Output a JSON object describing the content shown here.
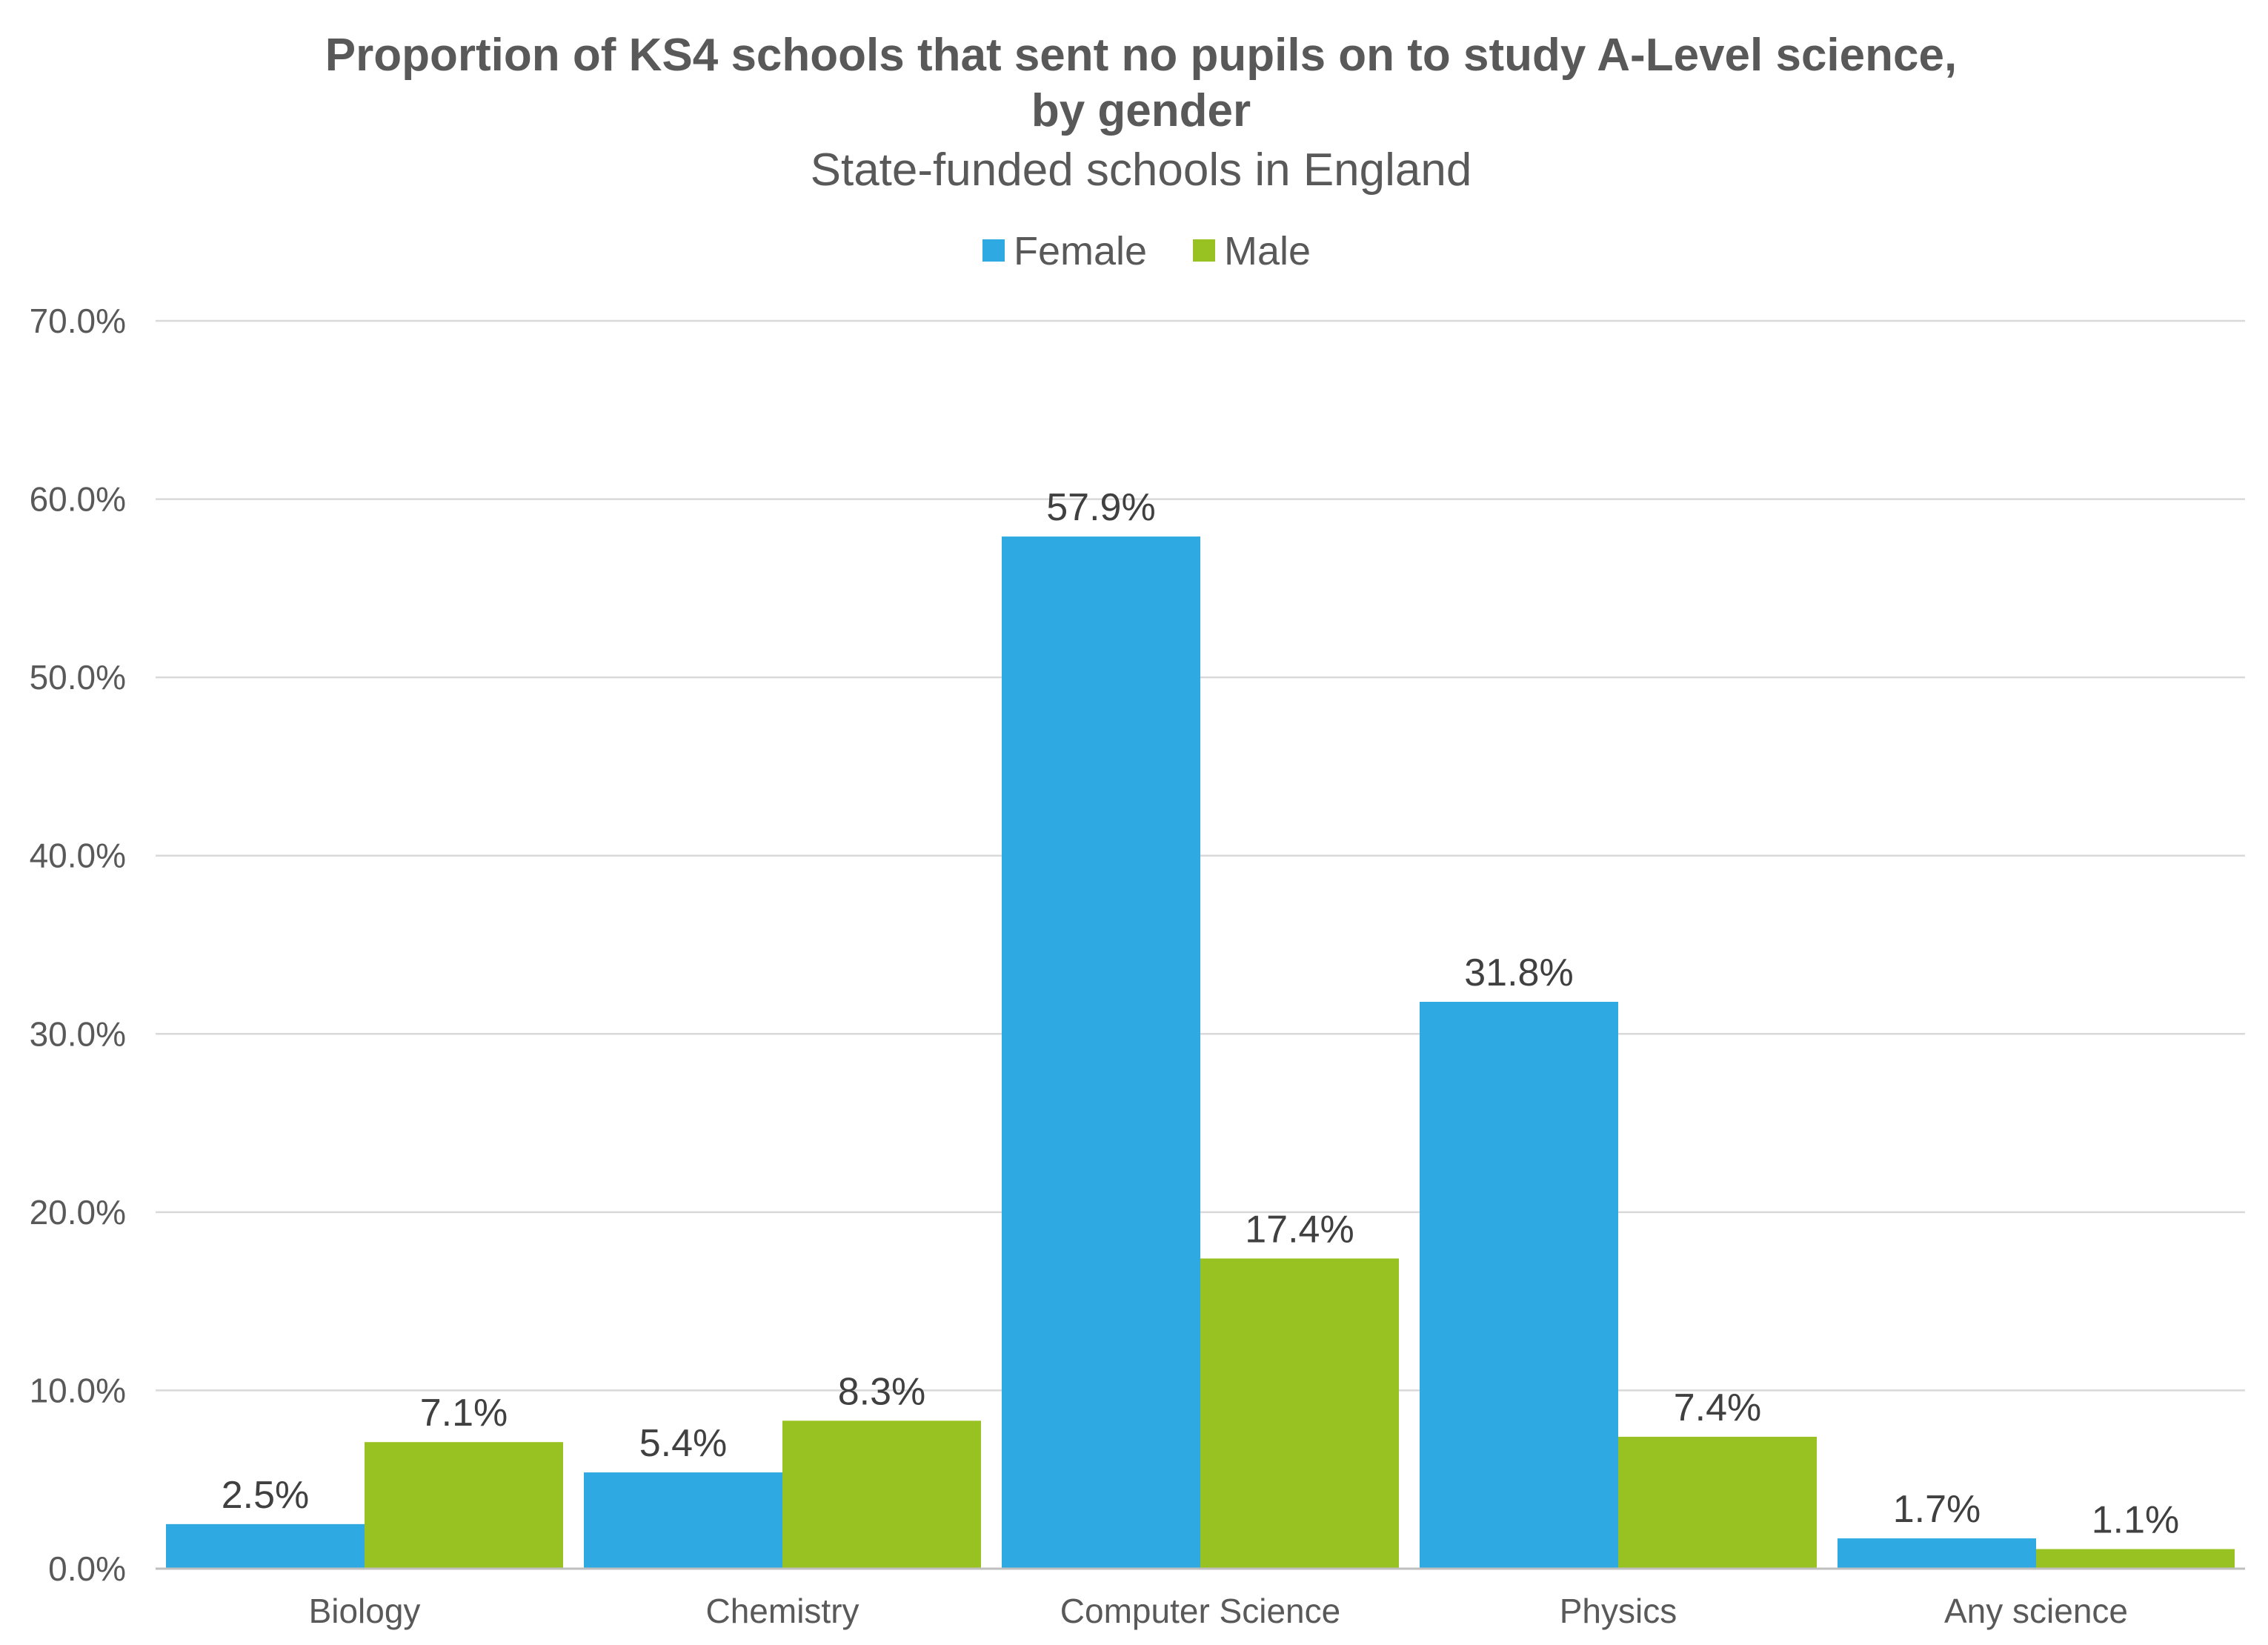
{
  "chart_data": {
    "type": "bar",
    "title": "Proportion of KS4 schools that sent no pupils on to study A-Level science,",
    "title_line2": "by gender",
    "subtitle": "State-funded schools in England",
    "categories": [
      "Biology",
      "Chemistry",
      "Computer Science",
      "Physics",
      "Any science"
    ],
    "series": [
      {
        "name": "Female",
        "color": "#2ea9e1",
        "values": [
          2.5,
          5.4,
          57.9,
          31.8,
          1.7
        ],
        "labels": [
          "2.5%",
          "5.4%",
          "57.9%",
          "31.8%",
          "1.7%"
        ]
      },
      {
        "name": "Male",
        "color": "#98c122",
        "values": [
          7.1,
          8.3,
          17.4,
          7.4,
          1.1
        ],
        "labels": [
          "7.1%",
          "8.3%",
          "17.4%",
          "7.4%",
          "1.1%"
        ]
      }
    ],
    "ylim": [
      0,
      70
    ],
    "yticks": [
      0,
      10,
      20,
      30,
      40,
      50,
      60,
      70
    ],
    "ytick_labels": [
      "0.0%",
      "10.0%",
      "20.0%",
      "30.0%",
      "40.0%",
      "50.0%",
      "60.0%",
      "70.0%"
    ],
    "grid": true,
    "legend_position": "top"
  }
}
